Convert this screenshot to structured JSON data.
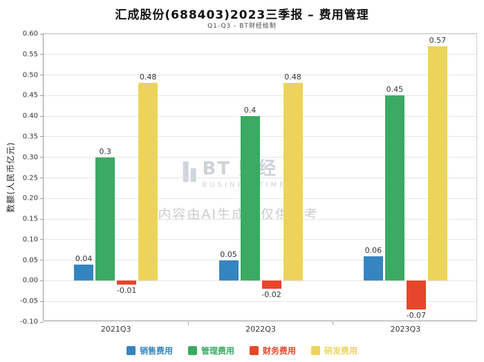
{
  "header": {
    "title": "汇成股份(688403)2023三季报 – 费用管理",
    "subtitle": "Q1-Q3 - BT财经绘制"
  },
  "watermark": {
    "logo_text": "BT 财经",
    "logo_sub": "BUSINESSTIMES",
    "notice": "内容由AI生成，仅供参考"
  },
  "chart_data": {
    "type": "bar",
    "title": "汇成股份(688403)2023三季报 – 费用管理",
    "subtitle": "Q1-Q3 - BT财经绘制",
    "categories": [
      "2021Q3",
      "2022Q3",
      "2023Q3"
    ],
    "series": [
      {
        "name": "销售费用",
        "color": "#3585c0",
        "values": [
          0.04,
          0.05,
          0.06
        ]
      },
      {
        "name": "管理费用",
        "color": "#3baa63",
        "values": [
          0.3,
          0.4,
          0.45
        ]
      },
      {
        "name": "财务费用",
        "color": "#e8462a",
        "values": [
          -0.01,
          -0.02,
          -0.07
        ]
      },
      {
        "name": "研发费用",
        "color": "#ecd45c",
        "values": [
          0.48,
          0.48,
          0.57
        ]
      }
    ],
    "xlabel": "",
    "ylabel": "数额(人民币亿元)",
    "ylim": [
      -0.1,
      0.6
    ],
    "ytick_step": 0.05,
    "grid": true,
    "legend_position": "bottom"
  }
}
